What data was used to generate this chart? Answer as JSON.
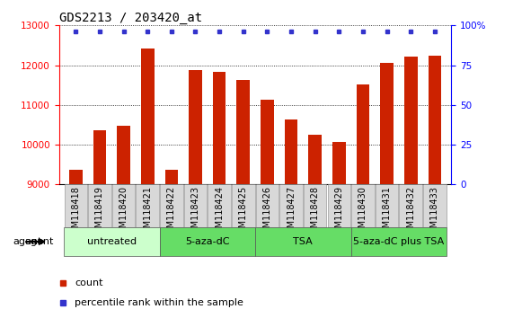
{
  "title": "GDS2213 / 203420_at",
  "samples": [
    "GSM118418",
    "GSM118419",
    "GSM118420",
    "GSM118421",
    "GSM118422",
    "GSM118423",
    "GSM118424",
    "GSM118425",
    "GSM118426",
    "GSM118427",
    "GSM118428",
    "GSM118429",
    "GSM118430",
    "GSM118431",
    "GSM118432",
    "GSM118433"
  ],
  "counts": [
    9370,
    10370,
    10480,
    12420,
    9370,
    11870,
    11840,
    11620,
    11130,
    10640,
    10250,
    10080,
    11510,
    12050,
    12210,
    12230
  ],
  "ylim": [
    9000,
    13000
  ],
  "y2lim": [
    0,
    100
  ],
  "yticks": [
    9000,
    10000,
    11000,
    12000,
    13000
  ],
  "y2ticks": [
    0,
    25,
    50,
    75,
    100
  ],
  "bar_color": "#cc2200",
  "dot_color": "#3333cc",
  "group_colors": [
    "#ccffcc",
    "#66dd66",
    "#66dd66",
    "#66dd66"
  ],
  "group_labels": [
    "untreated",
    "5-aza-dC",
    "TSA",
    "5-aza-dC plus TSA"
  ],
  "group_starts": [
    0,
    4,
    8,
    12
  ],
  "group_ends": [
    3,
    7,
    11,
    15
  ],
  "agent_label": "agent",
  "legend_count_label": "count",
  "legend_pct_label": "percentile rank within the sample",
  "title_fontsize": 10,
  "tick_fontsize": 7.5,
  "label_fontsize": 8
}
